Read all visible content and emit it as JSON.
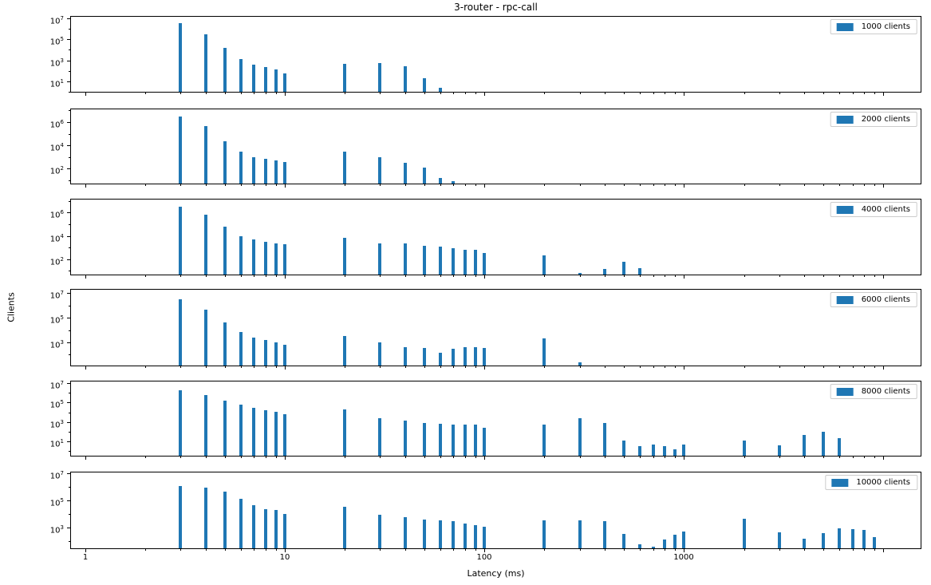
{
  "title": "3-router - rpc-call",
  "xlabel": "Latency (ms)",
  "ylabel": "Clients",
  "colors": {
    "bar": "#1f77b4",
    "axis": "#000000",
    "legend_border": "#cccccc",
    "background": "#ffffff"
  },
  "x_axis": {
    "scale": "log",
    "min": 0.84,
    "max": 15500,
    "major_ticks": [
      1,
      10,
      100,
      1000,
      10000
    ],
    "major_tick_labels": [
      "1",
      "10",
      "100",
      "1000",
      ""
    ]
  },
  "chart_data": [
    {
      "type": "bar",
      "name": "1000 clients",
      "y_scale": "log",
      "y_min_exp": -0.05,
      "y_max_exp": 7.2,
      "y_tick_exps": [
        1,
        3,
        5,
        7
      ],
      "legend_position": "upper right",
      "points": [
        [
          3,
          3200000
        ],
        [
          4,
          280000
        ],
        [
          5,
          15000
        ],
        [
          6,
          1300
        ],
        [
          7,
          400
        ],
        [
          8,
          230
        ],
        [
          9,
          135
        ],
        [
          10,
          56
        ],
        [
          20,
          450
        ],
        [
          30,
          560
        ],
        [
          40,
          260
        ],
        [
          50,
          20
        ],
        [
          60,
          2.5
        ]
      ]
    },
    {
      "type": "bar",
      "name": "2000 clients",
      "y_scale": "log",
      "y_min_exp": 0.65,
      "y_max_exp": 7.17,
      "y_tick_exps": [
        2,
        4,
        6
      ],
      "legend_position": "upper right",
      "points": [
        [
          3,
          3000000
        ],
        [
          4,
          460000
        ],
        [
          5,
          22000
        ],
        [
          6,
          2800
        ],
        [
          7,
          930
        ],
        [
          8,
          680
        ],
        [
          9,
          490
        ],
        [
          10,
          360
        ],
        [
          20,
          2800
        ],
        [
          30,
          1000
        ],
        [
          40,
          330
        ],
        [
          50,
          120
        ],
        [
          60,
          15
        ],
        [
          70,
          8
        ]
      ]
    },
    {
      "type": "bar",
      "name": "4000 clients",
      "y_scale": "log",
      "y_min_exp": 0.62,
      "y_max_exp": 7.19,
      "y_tick_exps": [
        2,
        4,
        6
      ],
      "legend_position": "upper right",
      "points": [
        [
          3,
          3000000
        ],
        [
          4,
          630000
        ],
        [
          5,
          60000
        ],
        [
          6,
          10000
        ],
        [
          7,
          5000
        ],
        [
          8,
          3200
        ],
        [
          9,
          2300
        ],
        [
          10,
          2000
        ],
        [
          20,
          7000
        ],
        [
          30,
          2300
        ],
        [
          40,
          2300
        ],
        [
          50,
          1500
        ],
        [
          60,
          1300
        ],
        [
          70,
          830
        ],
        [
          80,
          620
        ],
        [
          90,
          620
        ],
        [
          100,
          320
        ],
        [
          200,
          230
        ],
        [
          300,
          7
        ],
        [
          400,
          14
        ],
        [
          500,
          60
        ],
        [
          600,
          17
        ]
      ]
    },
    {
      "type": "bar",
      "name": "6000 clients",
      "y_scale": "log",
      "y_min_exp": 1.05,
      "y_max_exp": 7.35,
      "y_tick_exps": [
        3,
        5,
        7
      ],
      "legend_position": "upper right",
      "points": [
        [
          3,
          3000000
        ],
        [
          4,
          450000
        ],
        [
          5,
          40000
        ],
        [
          6,
          7000
        ],
        [
          7,
          2500
        ],
        [
          8,
          1600
        ],
        [
          9,
          1000
        ],
        [
          10,
          630
        ],
        [
          20,
          3200
        ],
        [
          30,
          930
        ],
        [
          40,
          400
        ],
        [
          50,
          350
        ],
        [
          60,
          145
        ],
        [
          70,
          300
        ],
        [
          80,
          420
        ],
        [
          90,
          420
        ],
        [
          100,
          350
        ],
        [
          200,
          2000
        ],
        [
          300,
          25
        ]
      ]
    },
    {
      "type": "bar",
      "name": "8000 clients",
      "y_scale": "log",
      "y_min_exp": -0.56,
      "y_max_exp": 7.25,
      "y_tick_exps": [
        1,
        3,
        5,
        7
      ],
      "legend_position": "upper right",
      "points": [
        [
          3,
          1800000
        ],
        [
          4,
          600000
        ],
        [
          5,
          160000
        ],
        [
          6,
          60000
        ],
        [
          7,
          29000
        ],
        [
          8,
          16000
        ],
        [
          9,
          11000
        ],
        [
          10,
          6300
        ],
        [
          20,
          20000
        ],
        [
          30,
          2500
        ],
        [
          40,
          1400
        ],
        [
          50,
          800
        ],
        [
          60,
          680
        ],
        [
          70,
          500
        ],
        [
          80,
          500
        ],
        [
          90,
          500
        ],
        [
          100,
          270
        ],
        [
          200,
          560
        ],
        [
          300,
          2500
        ],
        [
          400,
          800
        ],
        [
          500,
          12
        ],
        [
          600,
          3
        ],
        [
          700,
          4.5
        ],
        [
          800,
          3
        ],
        [
          900,
          1.6
        ],
        [
          1000,
          5
        ],
        [
          2000,
          12
        ],
        [
          3000,
          4
        ],
        [
          4000,
          50
        ],
        [
          5000,
          95
        ],
        [
          6000,
          20
        ]
      ]
    },
    {
      "type": "bar",
      "name": "10000 clients",
      "y_scale": "log",
      "y_min_exp": 1.4,
      "y_max_exp": 7.12,
      "y_tick_exps": [
        3,
        5,
        7
      ],
      "legend_position": "upper right",
      "points": [
        [
          3,
          1200000
        ],
        [
          4,
          900000
        ],
        [
          5,
          450000
        ],
        [
          6,
          130000
        ],
        [
          7,
          45000
        ],
        [
          8,
          22000
        ],
        [
          9,
          20000
        ],
        [
          10,
          10000
        ],
        [
          20,
          34000
        ],
        [
          30,
          8700
        ],
        [
          40,
          5800
        ],
        [
          50,
          4000
        ],
        [
          60,
          3200
        ],
        [
          70,
          3000
        ],
        [
          80,
          2000
        ],
        [
          90,
          1500
        ],
        [
          100,
          1200
        ],
        [
          200,
          3400
        ],
        [
          300,
          3200
        ],
        [
          400,
          3000
        ],
        [
          500,
          340
        ],
        [
          600,
          60
        ],
        [
          700,
          40
        ],
        [
          800,
          120
        ],
        [
          900,
          300
        ],
        [
          1000,
          500
        ],
        [
          2000,
          4500
        ],
        [
          3000,
          450
        ],
        [
          4000,
          150
        ],
        [
          5000,
          400
        ],
        [
          6000,
          900
        ],
        [
          7000,
          750
        ],
        [
          8000,
          650
        ],
        [
          9000,
          200
        ]
      ]
    }
  ]
}
